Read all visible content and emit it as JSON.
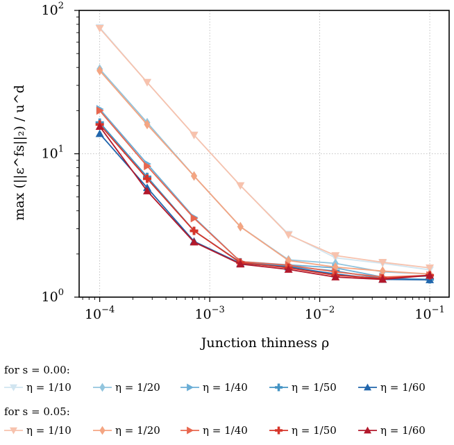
{
  "chart_data": {
    "type": "line",
    "xlabel": "Junction thinness ρ",
    "ylabel": "max (||ε^fs||₂) / u^d",
    "xscale": "log",
    "yscale": "log",
    "xlim": [
      6.5e-05,
      0.15
    ],
    "ylim": [
      1,
      100
    ],
    "x": [
      0.0001,
      0.00027,
      0.00072,
      0.0019,
      0.0052,
      0.0139,
      0.0373,
      0.1
    ],
    "x_ticks": [
      {
        "value": 0.0001,
        "base": "10",
        "exp": "−4"
      },
      {
        "value": 0.001,
        "base": "10",
        "exp": "−3"
      },
      {
        "value": 0.01,
        "base": "10",
        "exp": "−2"
      },
      {
        "value": 0.1,
        "base": "10",
        "exp": "−1"
      }
    ],
    "y_ticks": [
      {
        "value": 1,
        "base": "10",
        "exp": "0"
      },
      {
        "value": 10,
        "base": "10",
        "exp": "1"
      },
      {
        "value": 100,
        "base": "10",
        "exp": "2"
      }
    ],
    "grid": true,
    "series": [
      {
        "name": "η = 1/10",
        "group": "s = 0.00",
        "marker": "tri-down",
        "color": "#d1e5f0",
        "values": [
          76,
          31.5,
          13.5,
          6.0,
          2.75,
          1.88,
          1.72,
          1.55
        ]
      },
      {
        "name": "η = 1/20",
        "group": "s = 0.00",
        "marker": "diamond",
        "color": "#92c5de",
        "values": [
          39,
          16.5,
          7.0,
          3.1,
          1.82,
          1.72,
          1.5,
          1.45
        ]
      },
      {
        "name": "η = 1/40",
        "group": "s = 0.00",
        "marker": "tri-right",
        "color": "#6baed6",
        "values": [
          20.5,
          8.5,
          3.6,
          1.77,
          1.68,
          1.6,
          1.38,
          1.4
        ]
      },
      {
        "name": "η = 1/50",
        "group": "s = 0.00",
        "marker": "plus",
        "color": "#4393c3",
        "values": [
          16.5,
          6.9,
          2.9,
          1.75,
          1.64,
          1.52,
          1.35,
          1.33
        ]
      },
      {
        "name": "η = 1/60",
        "group": "s = 0.00",
        "marker": "tri-up",
        "color": "#2166ac",
        "values": [
          13.8,
          5.8,
          2.45,
          1.72,
          1.62,
          1.45,
          1.33,
          1.32
        ]
      },
      {
        "name": "η = 1/10",
        "group": "s = 0.05",
        "marker": "tri-down",
        "color": "#f7c2ad",
        "values": [
          75,
          31.5,
          13.5,
          6.0,
          2.72,
          1.95,
          1.75,
          1.6
        ]
      },
      {
        "name": "η = 1/20",
        "group": "s = 0.05",
        "marker": "diamond",
        "color": "#f4a582",
        "values": [
          38,
          16.0,
          7.0,
          3.1,
          1.8,
          1.62,
          1.52,
          1.45
        ]
      },
      {
        "name": "η = 1/40",
        "group": "s = 0.05",
        "marker": "tri-right",
        "color": "#e8674f",
        "values": [
          20,
          8.2,
          3.55,
          1.77,
          1.67,
          1.5,
          1.38,
          1.42
        ]
      },
      {
        "name": "η = 1/50",
        "group": "s = 0.05",
        "marker": "plus",
        "color": "#d6352a",
        "values": [
          16,
          6.7,
          2.9,
          1.74,
          1.6,
          1.42,
          1.35,
          1.42
        ]
      },
      {
        "name": "η = 1/60",
        "group": "s = 0.05",
        "marker": "tri-up",
        "color": "#b2182b",
        "values": [
          15.5,
          5.5,
          2.42,
          1.7,
          1.56,
          1.38,
          1.33,
          1.42
        ]
      }
    ]
  },
  "legend": {
    "group1_title": "for s = 0.00:",
    "group2_title": "for s = 0.05:",
    "group1": [
      {
        "label": "η = 1/10",
        "marker": "tri-down",
        "color": "#d1e5f0"
      },
      {
        "label": "η = 1/20",
        "marker": "diamond",
        "color": "#92c5de"
      },
      {
        "label": "η = 1/40",
        "marker": "tri-right",
        "color": "#6baed6"
      },
      {
        "label": "η = 1/50",
        "marker": "plus",
        "color": "#4393c3"
      },
      {
        "label": "η = 1/60",
        "marker": "tri-up",
        "color": "#2166ac"
      }
    ],
    "group2": [
      {
        "label": "η = 1/10",
        "marker": "tri-down",
        "color": "#f7c2ad"
      },
      {
        "label": "η = 1/20",
        "marker": "diamond",
        "color": "#f4a582"
      },
      {
        "label": "η = 1/40",
        "marker": "tri-right",
        "color": "#e8674f"
      },
      {
        "label": "η = 1/50",
        "marker": "plus",
        "color": "#d6352a"
      },
      {
        "label": "η = 1/60",
        "marker": "tri-up",
        "color": "#b2182b"
      }
    ]
  }
}
